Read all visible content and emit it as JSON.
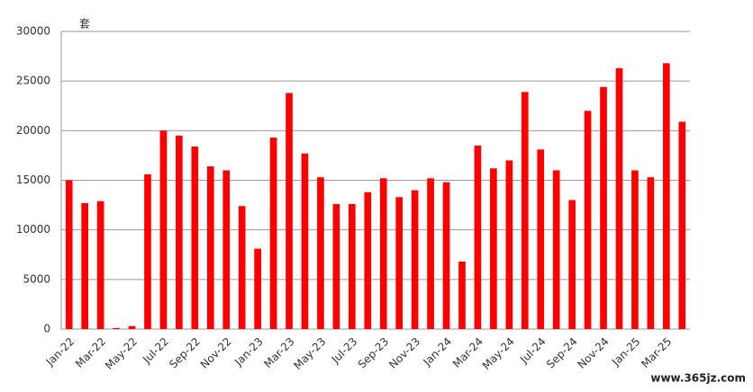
{
  "chart_data": {
    "type": "bar",
    "y_unit": "套",
    "categories": [
      "Jan-22",
      null,
      "Mar-22",
      null,
      "May-22",
      null,
      "Jul-22",
      null,
      "Sep-22",
      null,
      "Nov-22",
      null,
      "Jan-23",
      null,
      "Mar-23",
      null,
      "May-23",
      null,
      "Jul-23",
      null,
      "Sep-23",
      null,
      "Nov-23",
      null,
      "Jan-24",
      null,
      "Mar-24",
      null,
      "May-24",
      null,
      "Jul-24",
      null,
      "Sep-24",
      null,
      "Nov-24",
      null,
      "Jan-25",
      null,
      "Mar-25",
      null
    ],
    "values": [
      15000,
      12700,
      12900,
      100,
      300,
      15600,
      20000,
      19500,
      18400,
      16400,
      16000,
      12400,
      8100,
      19300,
      23800,
      17700,
      15300,
      12600,
      12600,
      13800,
      15200,
      13300,
      14000,
      15200,
      14800,
      6800,
      18500,
      16200,
      17000,
      23900,
      18100,
      16000,
      13000,
      22000,
      24400,
      26300,
      16000,
      15300,
      26800,
      20900
    ],
    "color": "#ff0000",
    "ylim": [
      0,
      30000
    ],
    "yticks": [
      0,
      5000,
      10000,
      15000,
      20000,
      25000,
      30000
    ],
    "grid": true
  },
  "watermark": "www.365jz.com"
}
